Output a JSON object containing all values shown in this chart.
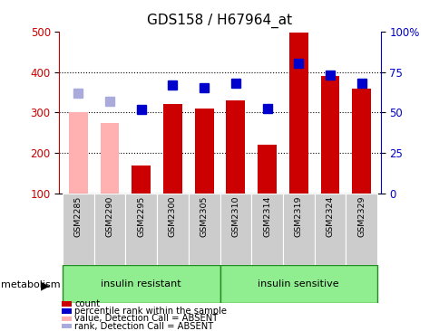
{
  "title": "GDS158 / H67964_at",
  "samples": [
    "GSM2285",
    "GSM2290",
    "GSM2295",
    "GSM2300",
    "GSM2305",
    "GSM2310",
    "GSM2314",
    "GSM2319",
    "GSM2324",
    "GSM2329"
  ],
  "bar_values": [
    300,
    275,
    170,
    320,
    310,
    330,
    220,
    498,
    390,
    358
  ],
  "bar_colors": [
    "#FFB0B0",
    "#FFB0B0",
    "#CC0000",
    "#CC0000",
    "#CC0000",
    "#CC0000",
    "#CC0000",
    "#CC0000",
    "#CC0000",
    "#CC0000"
  ],
  "rank_values": [
    348,
    328,
    308,
    368,
    362,
    373,
    311,
    422,
    393,
    372
  ],
  "rank_colors": [
    "#AAAADD",
    "#AAAADD",
    "#0000CC",
    "#0000CC",
    "#0000CC",
    "#0000CC",
    "#0000CC",
    "#0000CC",
    "#0000CC",
    "#0000CC"
  ],
  "ylim_left": [
    100,
    500
  ],
  "ylim_right": [
    0,
    100
  ],
  "yticks_left": [
    100,
    200,
    300,
    400,
    500
  ],
  "yticks_right": [
    0,
    25,
    50,
    75,
    100
  ],
  "ytick_labels_right": [
    "0",
    "25",
    "50",
    "75",
    "100%"
  ],
  "grid_values": [
    200,
    300,
    400
  ],
  "group_label": "metabolism",
  "group1_label": "insulin resistant",
  "group1_range": [
    0,
    5
  ],
  "group2_label": "insulin sensitive",
  "group2_range": [
    5,
    10
  ],
  "legend_items": [
    {
      "label": "count",
      "color": "#CC0000"
    },
    {
      "label": "percentile rank within the sample",
      "color": "#0000CC"
    },
    {
      "label": "value, Detection Call = ABSENT",
      "color": "#FFB0B0"
    },
    {
      "label": "rank, Detection Call = ABSENT",
      "color": "#AAAADD"
    }
  ],
  "bar_width": 0.6,
  "rank_marker_size": 7,
  "title_fontsize": 11,
  "axis_color_left": "#CC0000",
  "axis_color_right": "#0000CC",
  "bg_color": "#FFFFFF",
  "sample_bg_color": "#CCCCCC",
  "group_green": "#90EE90",
  "group_border": "#228B22"
}
